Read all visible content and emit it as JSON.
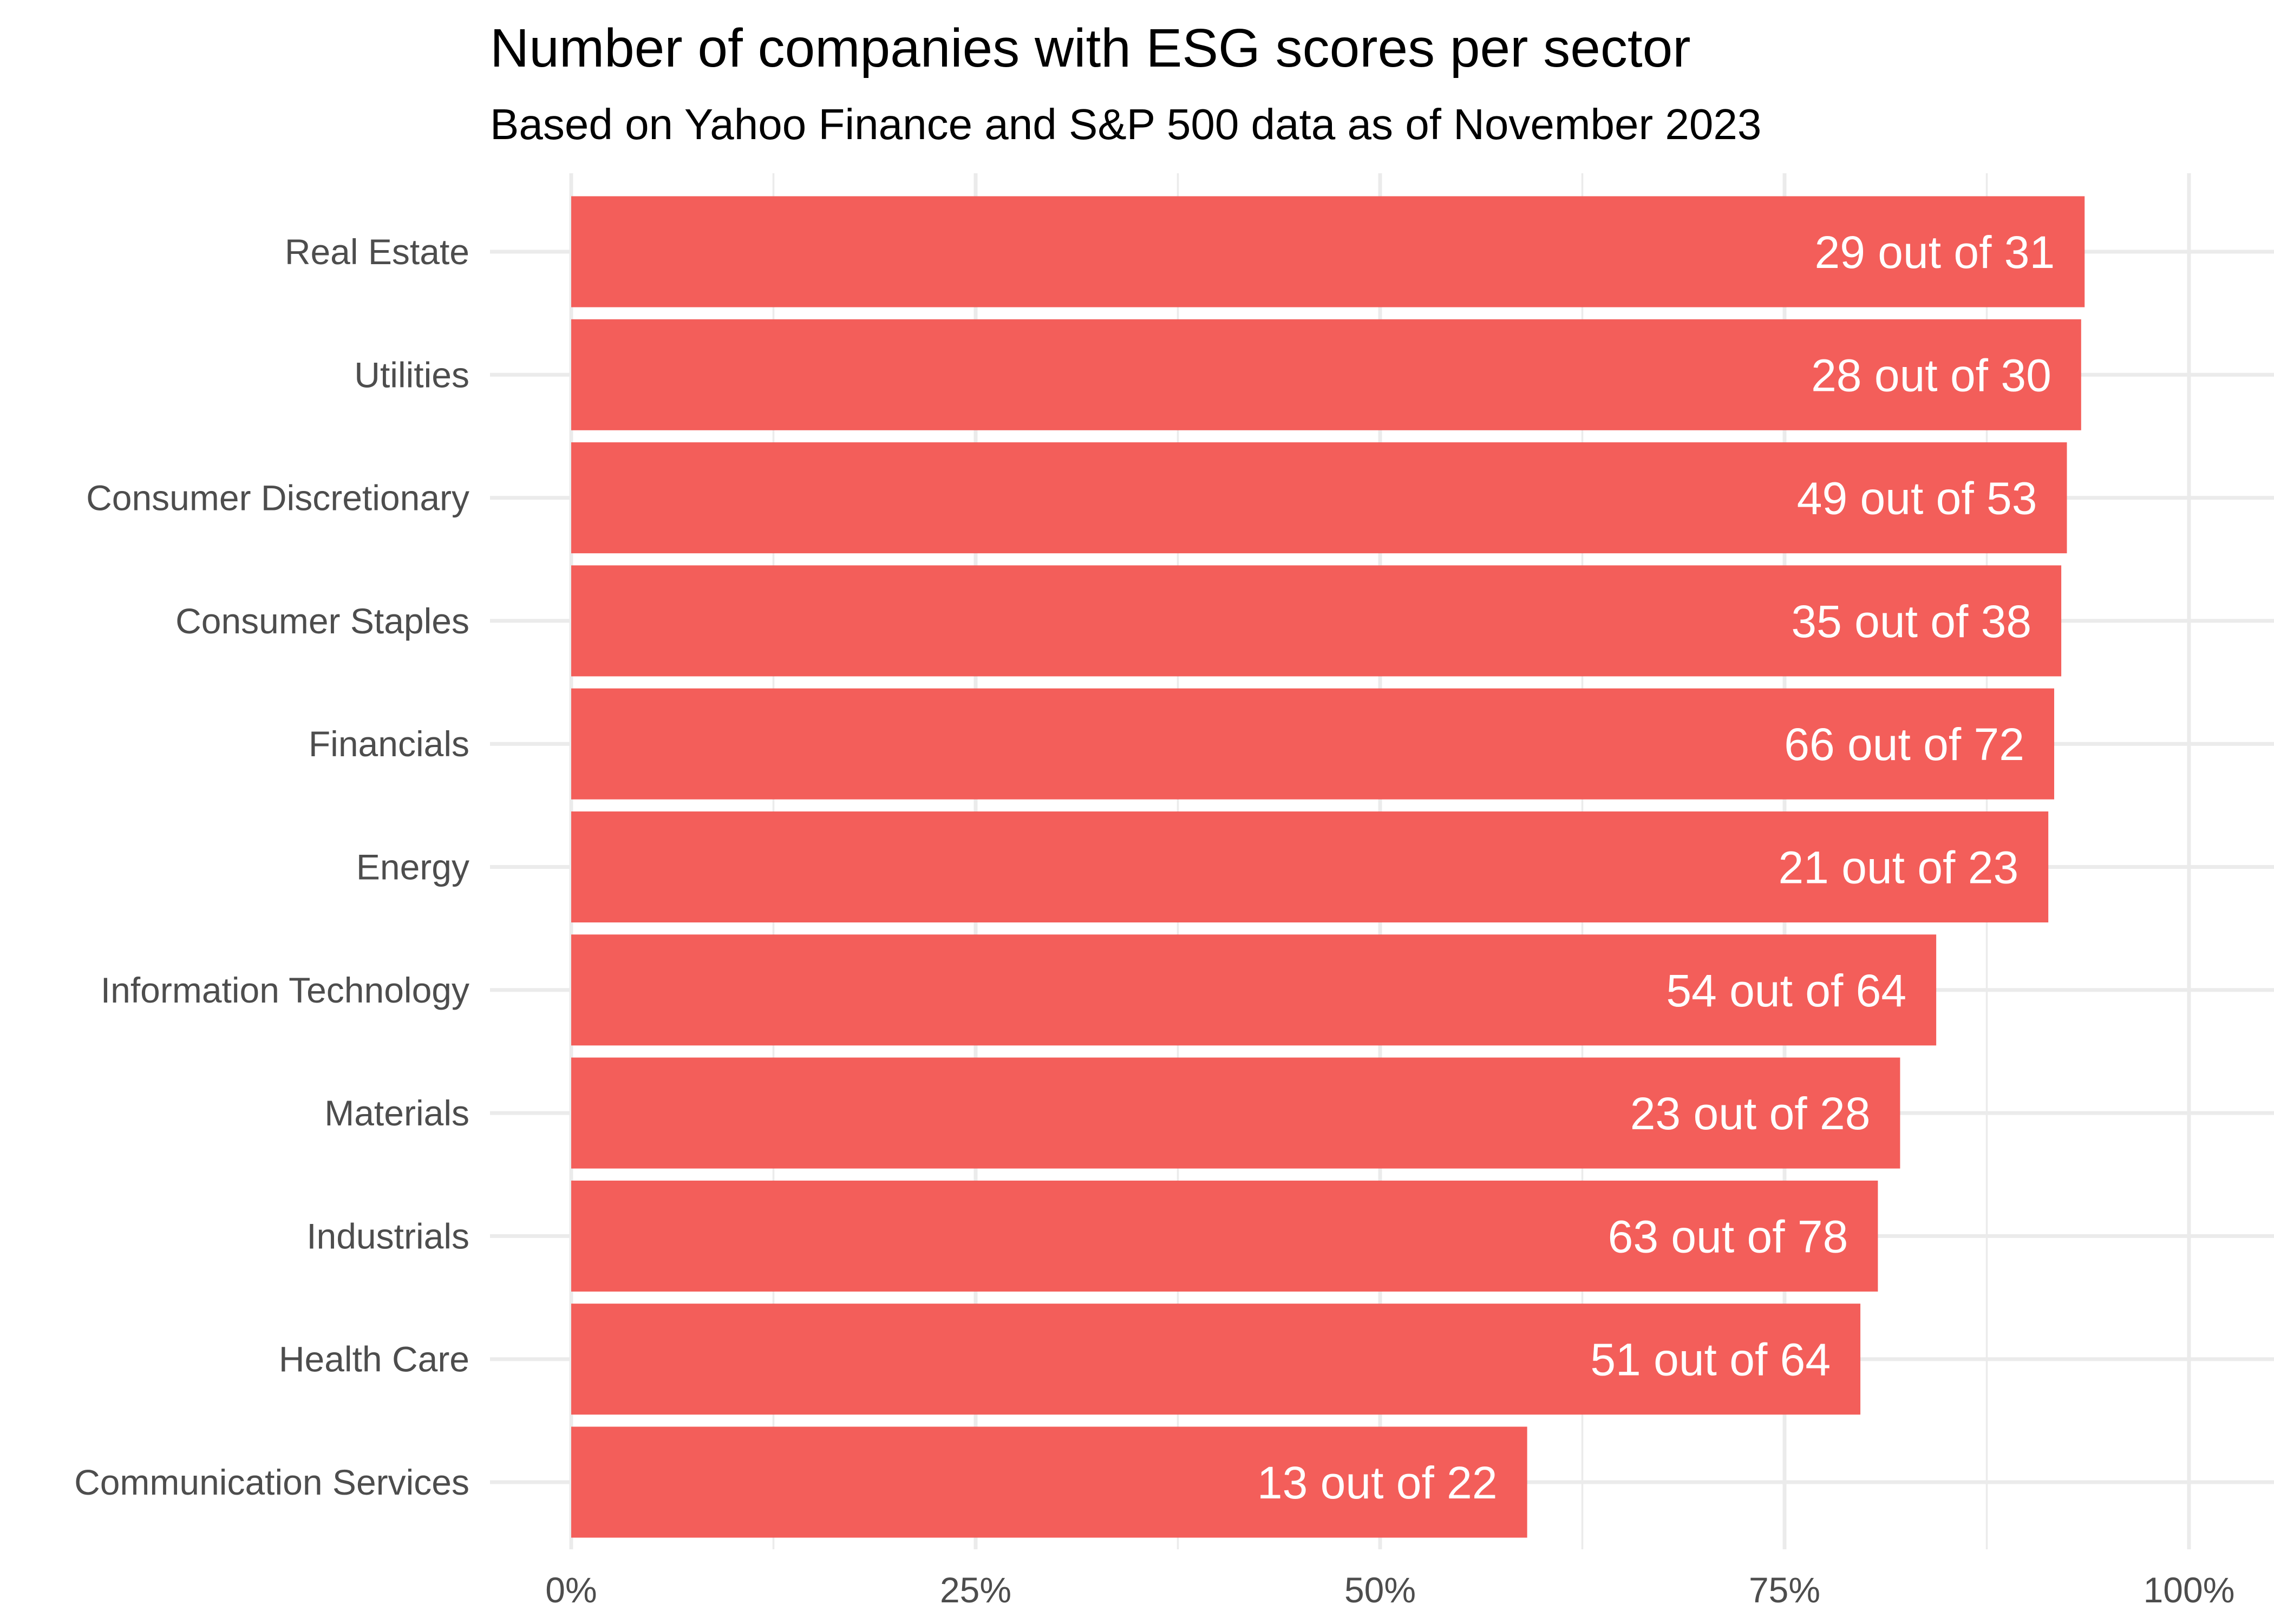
{
  "chart_data": {
    "type": "bar",
    "orientation": "horizontal",
    "title": "Number of companies with ESG scores per sector",
    "subtitle": "Based on Yahoo Finance and S&P 500 data as of November 2023",
    "xlim": [
      0,
      1
    ],
    "x_ticks": [
      0,
      0.25,
      0.5,
      0.75,
      1
    ],
    "x_tick_labels": [
      "0%",
      "25%",
      "50%",
      "75%",
      "100%"
    ],
    "grid": true,
    "bar_color": "#F35E5A",
    "categories": [
      "Real Estate",
      "Utilities",
      "Consumer Discretionary",
      "Consumer Staples",
      "Financials",
      "Energy",
      "Information Technology",
      "Materials",
      "Industrials",
      "Health Care",
      "Communication Services"
    ],
    "with_scores": [
      29,
      28,
      49,
      35,
      66,
      21,
      54,
      23,
      63,
      51,
      13
    ],
    "totals": [
      31,
      30,
      53,
      38,
      72,
      23,
      64,
      28,
      78,
      64,
      22
    ],
    "labels": [
      "29 out of 31",
      "28 out of 30",
      "49 out of 53",
      "35 out of 38",
      "66 out of 72",
      "21 out of 23",
      "54 out of 64",
      "23 out of 28",
      "63 out of 78",
      "51 out of 64",
      "13 out of 22"
    ]
  }
}
